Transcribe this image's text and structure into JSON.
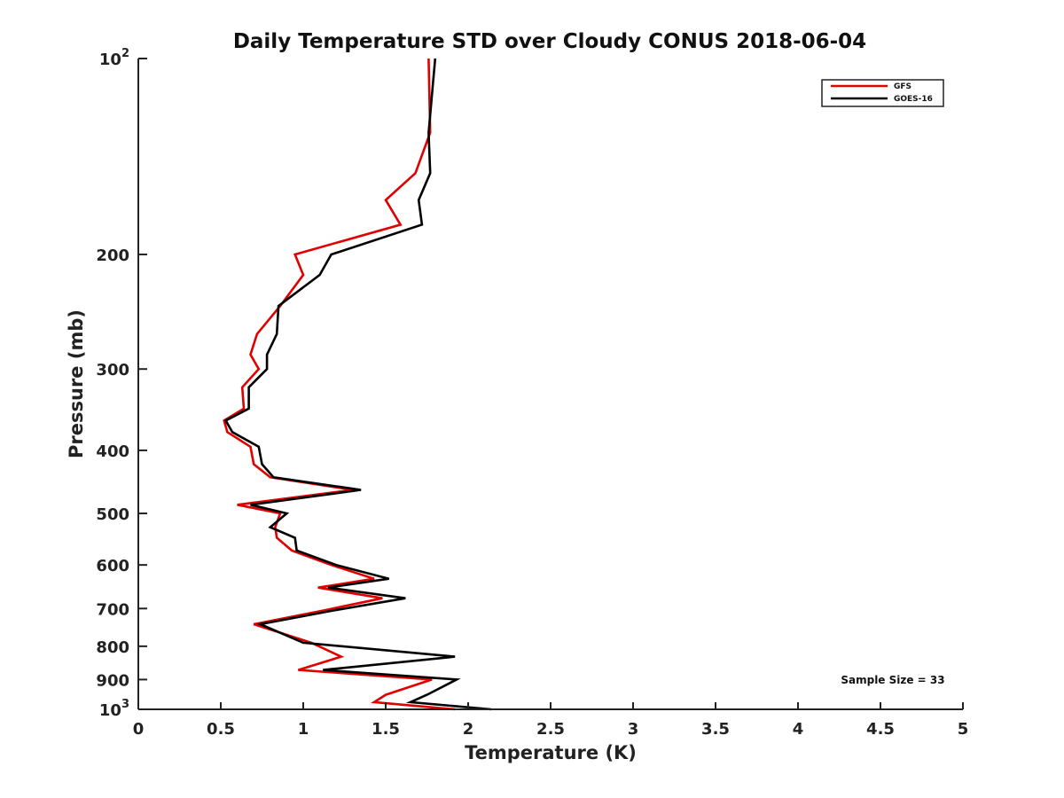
{
  "chart_data": {
    "type": "line",
    "title": "Daily Temperature STD over Cloudy CONUS 2018-06-04",
    "xlabel": "Temperature (K)",
    "ylabel": "Pressure (mb)",
    "xlim": [
      0,
      5
    ],
    "ylim": [
      100,
      1000
    ],
    "y_scale": "log",
    "y_direction": "reversed",
    "x_ticks": [
      "0",
      "0.5",
      "1",
      "1.5",
      "2",
      "2.5",
      "3",
      "3.5",
      "4",
      "4.5",
      "5"
    ],
    "y_ticks": [
      {
        "value": 100,
        "base": "10",
        "exp": "2"
      },
      {
        "value": 200,
        "base": "200",
        "exp": ""
      },
      {
        "value": 300,
        "base": "300",
        "exp": ""
      },
      {
        "value": 400,
        "base": "400",
        "exp": ""
      },
      {
        "value": 500,
        "base": "500",
        "exp": ""
      },
      {
        "value": 600,
        "base": "600",
        "exp": ""
      },
      {
        "value": 700,
        "base": "700",
        "exp": ""
      },
      {
        "value": 800,
        "base": "800",
        "exp": ""
      },
      {
        "value": 900,
        "base": "900",
        "exp": ""
      },
      {
        "value": 1000,
        "base": "10",
        "exp": "3"
      }
    ],
    "grid": false,
    "legend": "top-right",
    "annotation": "Sample Size = 33",
    "series": [
      {
        "name": "GFS",
        "color": "#e00000",
        "points": [
          [
            1.76,
            100
          ],
          [
            1.77,
            130
          ],
          [
            1.68,
            150
          ],
          [
            1.5,
            165
          ],
          [
            1.59,
            180
          ],
          [
            0.95,
            200
          ],
          [
            1.0,
            215
          ],
          [
            0.86,
            240
          ],
          [
            0.72,
            265
          ],
          [
            0.68,
            285
          ],
          [
            0.73,
            300
          ],
          [
            0.63,
            320
          ],
          [
            0.64,
            345
          ],
          [
            0.52,
            360
          ],
          [
            0.54,
            375
          ],
          [
            0.68,
            395
          ],
          [
            0.7,
            420
          ],
          [
            0.8,
            440
          ],
          [
            1.3,
            460
          ],
          [
            0.6,
            485
          ],
          [
            0.86,
            500
          ],
          [
            0.83,
            525
          ],
          [
            0.84,
            545
          ],
          [
            0.93,
            570
          ],
          [
            1.17,
            600
          ],
          [
            1.43,
            630
          ],
          [
            1.09,
            650
          ],
          [
            1.48,
            675
          ],
          [
            1.12,
            705
          ],
          [
            0.7,
            740
          ],
          [
            1.05,
            790
          ],
          [
            1.23,
            830
          ],
          [
            0.97,
            870
          ],
          [
            1.78,
            900
          ],
          [
            1.5,
            950
          ],
          [
            1.43,
            975
          ],
          [
            1.92,
            1000
          ]
        ]
      },
      {
        "name": "GOES-16",
        "color": "#000000",
        "points": [
          [
            1.8,
            100
          ],
          [
            1.76,
            130
          ],
          [
            1.77,
            150
          ],
          [
            1.7,
            165
          ],
          [
            1.72,
            180
          ],
          [
            1.17,
            200
          ],
          [
            1.1,
            215
          ],
          [
            0.85,
            240
          ],
          [
            0.84,
            265
          ],
          [
            0.78,
            285
          ],
          [
            0.78,
            300
          ],
          [
            0.67,
            320
          ],
          [
            0.67,
            345
          ],
          [
            0.53,
            360
          ],
          [
            0.57,
            375
          ],
          [
            0.73,
            395
          ],
          [
            0.75,
            420
          ],
          [
            0.82,
            440
          ],
          [
            1.35,
            460
          ],
          [
            0.68,
            485
          ],
          [
            0.9,
            500
          ],
          [
            0.8,
            525
          ],
          [
            0.95,
            545
          ],
          [
            0.96,
            570
          ],
          [
            1.2,
            600
          ],
          [
            1.52,
            630
          ],
          [
            1.15,
            650
          ],
          [
            1.62,
            675
          ],
          [
            1.18,
            705
          ],
          [
            0.74,
            740
          ],
          [
            1.0,
            790
          ],
          [
            1.92,
            830
          ],
          [
            1.12,
            870
          ],
          [
            1.93,
            900
          ],
          [
            1.75,
            950
          ],
          [
            1.65,
            975
          ],
          [
            2.14,
            1000
          ]
        ]
      }
    ]
  }
}
